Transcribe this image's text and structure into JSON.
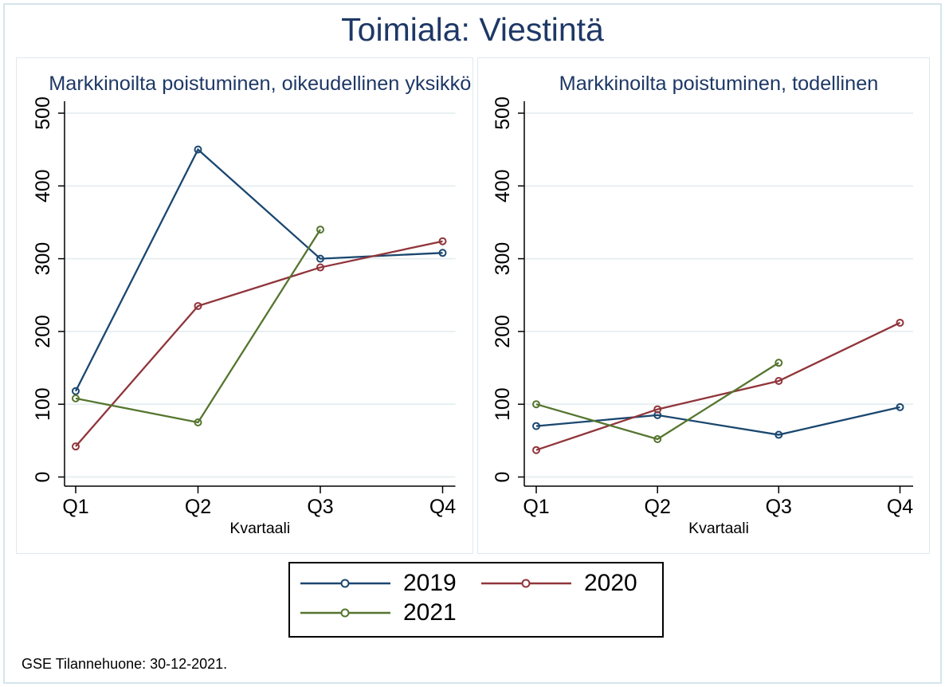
{
  "title": "Toimiala: Viestintä",
  "footer": "GSE Tilannehuone: 30-12-2021.",
  "colors": {
    "navy": "#1a476f",
    "maroon": "#90353b",
    "olive": "#55752f",
    "title_text": "#1e3866",
    "gridline": "#e5eef0",
    "panel_border": "#dfe9ee",
    "outer_border": "#d4e5ec"
  },
  "legend": {
    "items": [
      {
        "label": "2019",
        "color": "navy"
      },
      {
        "label": "2020",
        "color": "maroon"
      },
      {
        "label": "2021",
        "color": "olive"
      }
    ]
  },
  "chart_data": [
    {
      "type": "line",
      "title": "Markkinoilta poistuminen, oikeudellinen yksikkö",
      "xlabel": "Kvartaali",
      "categories": [
        "Q1",
        "Q2",
        "Q3",
        "Q4"
      ],
      "ylim": [
        0,
        500
      ],
      "yticks": [
        0,
        100,
        200,
        300,
        400,
        500
      ],
      "grid": true,
      "series": [
        {
          "name": "2019",
          "color": "navy",
          "values": [
            118,
            450,
            300,
            308
          ]
        },
        {
          "name": "2020",
          "color": "maroon",
          "values": [
            42,
            235,
            288,
            324
          ]
        },
        {
          "name": "2021",
          "color": "olive",
          "values": [
            108,
            75,
            340,
            null
          ]
        }
      ]
    },
    {
      "type": "line",
      "title": "Markkinoilta poistuminen, todellinen",
      "xlabel": "Kvartaali",
      "categories": [
        "Q1",
        "Q2",
        "Q3",
        "Q4"
      ],
      "ylim": [
        0,
        500
      ],
      "yticks": [
        0,
        100,
        200,
        300,
        400,
        500
      ],
      "grid": true,
      "series": [
        {
          "name": "2019",
          "color": "navy",
          "values": [
            70,
            85,
            58,
            96
          ]
        },
        {
          "name": "2020",
          "color": "maroon",
          "values": [
            37,
            93,
            132,
            212
          ]
        },
        {
          "name": "2021",
          "color": "olive",
          "values": [
            100,
            52,
            157,
            null
          ]
        }
      ]
    }
  ]
}
